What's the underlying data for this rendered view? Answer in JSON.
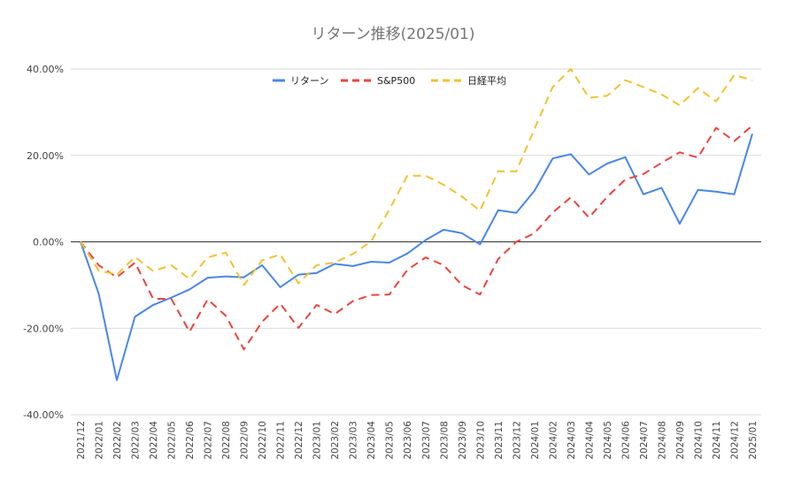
{
  "chart_data": {
    "type": "line",
    "title": "リターン推移(2025/01)",
    "xlabel": "",
    "ylabel": "",
    "ylim": [
      -40,
      40
    ],
    "yticks": [
      40,
      20,
      0,
      -20,
      -40
    ],
    "ytick_labels": [
      "40.00%",
      "20.00%",
      "0.00%",
      "-20.00%",
      "-40.00%"
    ],
    "grid": true,
    "legend_position": "top-center",
    "categories": [
      "2021/12",
      "2022/01",
      "2022/02",
      "2022/03",
      "2022/04",
      "2022/05",
      "2022/06",
      "2022/07",
      "2022/08",
      "2022/09",
      "2022/10",
      "2022/11",
      "2022/12",
      "2023/01",
      "2023/02",
      "2023/03",
      "2023/04",
      "2023/05",
      "2023/06",
      "2023/07",
      "2023/08",
      "2023/09",
      "2023/10",
      "2023/11",
      "2023/12",
      "2024/01",
      "2024/02",
      "2024/03",
      "2024/04",
      "2024/05",
      "2024/06",
      "2024/07",
      "2024/08",
      "2024/09",
      "2024/10",
      "2024/11",
      "2024/12",
      "2025/01"
    ],
    "series": [
      {
        "name": "リターン",
        "color": "#4a86e8",
        "dash": "solid",
        "values": [
          0,
          -12,
          -32,
          -17.3,
          -14.6,
          -12.9,
          -11,
          -8.3,
          -8,
          -8.2,
          -5.4,
          -10.5,
          -7.6,
          -7.2,
          -5.1,
          -5.6,
          -4.6,
          -4.8,
          -2.7,
          0.4,
          2.8,
          2,
          -0.6,
          7.3,
          6.7,
          11.8,
          19.3,
          20.3,
          15.6,
          18.1,
          19.6,
          11,
          12.5,
          4.2,
          12,
          11.6,
          11,
          25
        ]
      },
      {
        "name": "S&P500",
        "color": "#e8453c",
        "dash": "dashed",
        "values": [
          0,
          -5.4,
          -8.2,
          -4.8,
          -13.2,
          -13.2,
          -20.8,
          -13.3,
          -17.1,
          -24.9,
          -18.5,
          -14.3,
          -19.9,
          -14.6,
          -16.7,
          -13.7,
          -12.3,
          -12.2,
          -6.5,
          -3.6,
          -5.4,
          -10,
          -12.2,
          -4,
          0,
          2,
          6.8,
          10.3,
          5.6,
          10.4,
          14.4,
          15.7,
          18.3,
          20.7,
          19.5,
          26.4,
          23.3,
          26.9
        ]
      },
      {
        "name": "日経平均",
        "color": "#f1c232",
        "dash": "dashed",
        "values": [
          0,
          -6.6,
          -7.6,
          -3.5,
          -6.8,
          -5.4,
          -8.6,
          -3.6,
          -2.5,
          -10,
          -4.3,
          -2.9,
          -9.6,
          -5.4,
          -4.8,
          -2.8,
          0.1,
          7.4,
          15.3,
          15.3,
          13.2,
          10.5,
          7.2,
          16.3,
          16.3,
          26.1,
          35.8,
          40,
          33.3,
          33.8,
          37.4,
          35.8,
          34.1,
          31.6,
          35.6,
          32.5,
          38.6,
          37.4
        ]
      }
    ]
  }
}
